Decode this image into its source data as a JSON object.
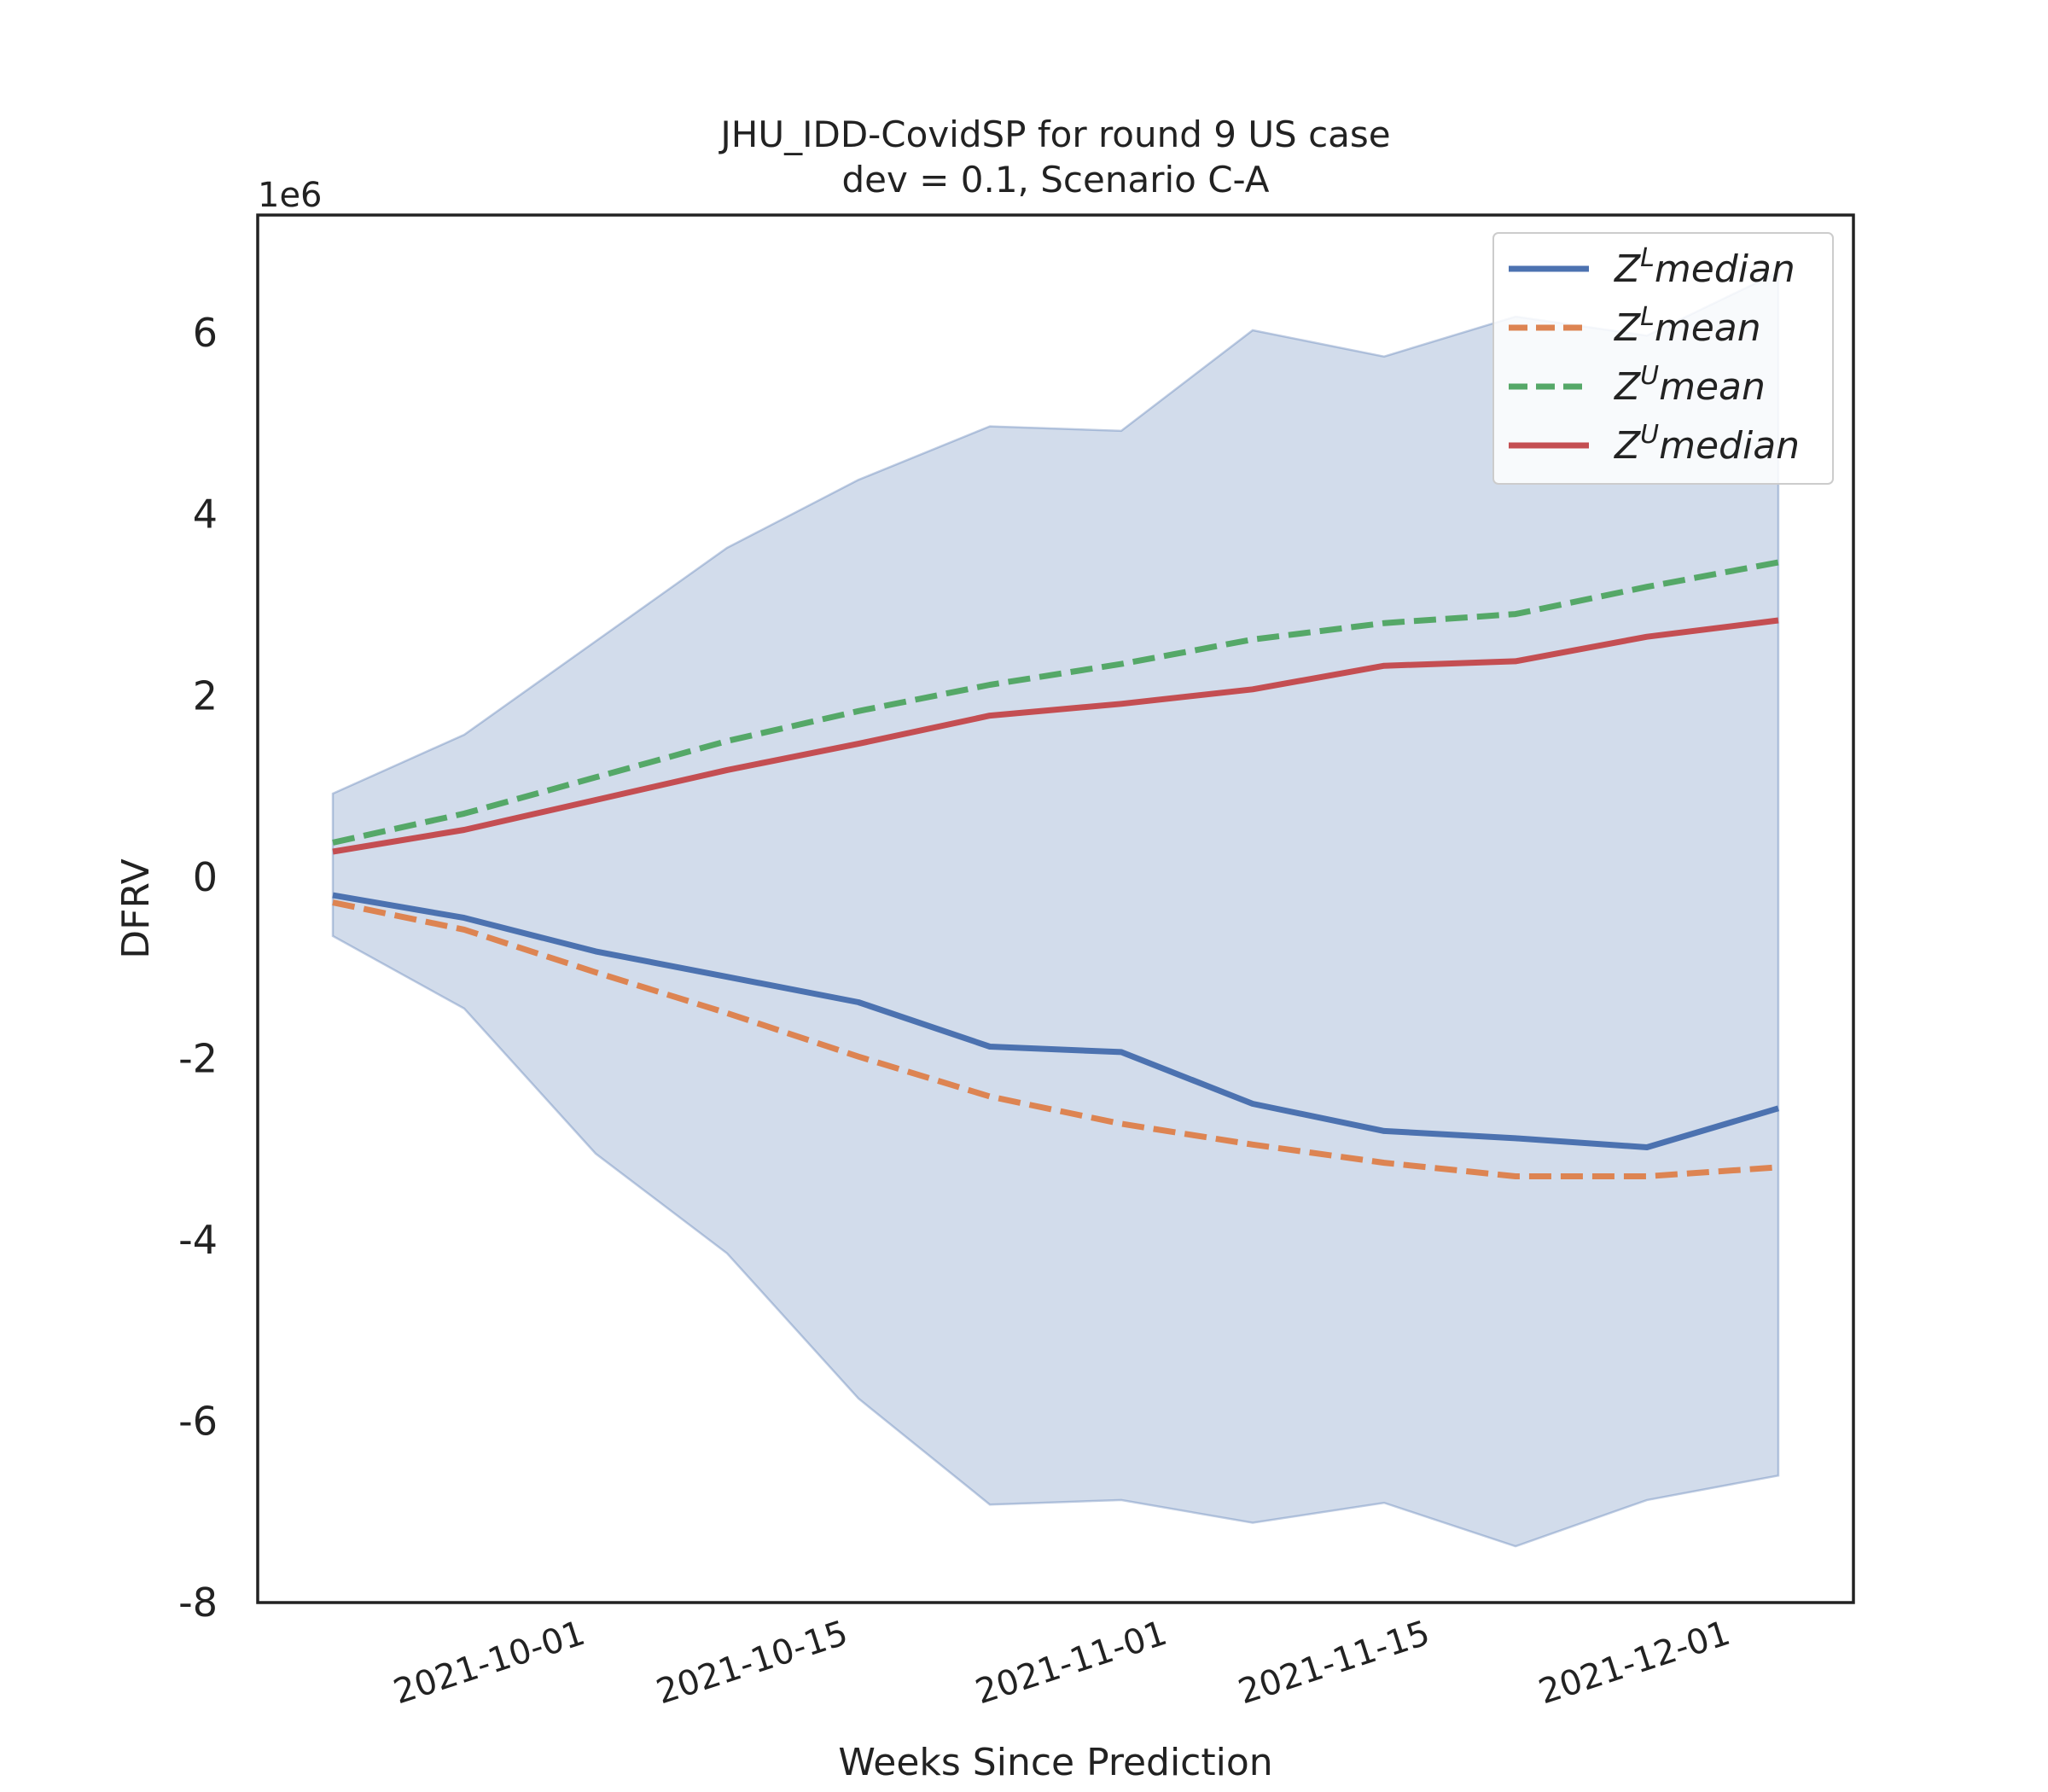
{
  "chart_data": {
    "type": "line",
    "title": "JHU_IDD-CovidSP for round 9 US case",
    "subtitle": "dev = 0.1, Scenario C-A",
    "xlabel": "Weeks Since Prediction",
    "ylabel": "DFRV",
    "y_multiplier_label": "1e6",
    "x": [
      "2021-09-18",
      "2021-09-25",
      "2021-10-02",
      "2021-10-09",
      "2021-10-16",
      "2021-10-23",
      "2021-10-30",
      "2021-11-06",
      "2021-11-13",
      "2021-11-20",
      "2021-11-27",
      "2021-12-04"
    ],
    "x_ticks": [
      "2021-10-01",
      "2021-10-15",
      "2021-11-01",
      "2021-11-15",
      "2021-12-01"
    ],
    "y_ticks": [
      "-8",
      "-6",
      "-4",
      "-2",
      "0",
      "2",
      "4",
      "6"
    ],
    "ylim": [
      -8.0,
      7.3
    ],
    "xlim": [
      "2021-09-14",
      "2021-12-08"
    ],
    "grid": false,
    "legend_position": "top-right",
    "series": [
      {
        "name": "Z^L median",
        "label_base": "Z",
        "label_sup": "L",
        "label_tail": "median",
        "color": "#4c72b0",
        "style": "solid",
        "values": [
          -0.2,
          -0.45,
          -0.82,
          -1.1,
          -1.38,
          -1.87,
          -1.93,
          -2.5,
          -2.8,
          -2.88,
          -2.98,
          -2.55
        ]
      },
      {
        "name": "Z^L mean",
        "label_base": "Z",
        "label_sup": "L",
        "label_tail": "mean",
        "color": "#dd8452",
        "style": "dashed",
        "values": [
          -0.28,
          -0.58,
          -1.05,
          -1.5,
          -1.98,
          -2.42,
          -2.72,
          -2.95,
          -3.15,
          -3.3,
          -3.3,
          -3.2
        ]
      },
      {
        "name": "Z^U mean",
        "label_base": "Z",
        "label_sup": "U",
        "label_tail": "mean",
        "color": "#55a868",
        "style": "dashed",
        "values": [
          0.38,
          0.7,
          1.1,
          1.5,
          1.83,
          2.12,
          2.35,
          2.62,
          2.8,
          2.9,
          3.2,
          3.47
        ]
      },
      {
        "name": "Z^U median",
        "label_base": "Z",
        "label_sup": "U",
        "label_tail": "median",
        "color": "#c44e52",
        "style": "solid",
        "values": [
          0.28,
          0.52,
          0.85,
          1.18,
          1.47,
          1.78,
          1.91,
          2.07,
          2.33,
          2.38,
          2.65,
          2.83
        ]
      }
    ],
    "band": {
      "color": "#4c72b0",
      "upper": [
        0.92,
        1.57,
        2.6,
        3.63,
        4.38,
        4.97,
        4.92,
        6.03,
        5.74,
        6.18,
        5.97,
        6.67
      ],
      "lower": [
        -0.65,
        -1.45,
        -3.05,
        -4.15,
        -5.75,
        -6.92,
        -6.87,
        -7.12,
        -6.9,
        -7.38,
        -6.87,
        -6.6
      ]
    }
  }
}
